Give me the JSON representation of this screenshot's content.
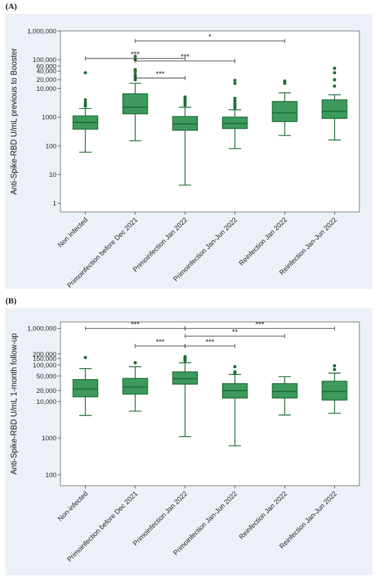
{
  "panel_a_label": "(A)",
  "panel_b_label": "(B)",
  "colors": {
    "box_fill": "#3d9a5c",
    "box_stroke": "#1d6b33",
    "outlier": "#1f6e34",
    "panel_background": "#ebf1f6",
    "plot_background": "#ffffff"
  },
  "chart_data": [
    {
      "type": "box",
      "ylabel": "Anti-Spike-RBD U/mL previous to Booster",
      "yscale": "log",
      "ylim": [
        0.5,
        1000000
      ],
      "yticks": [
        {
          "v": 1,
          "label": "1"
        },
        {
          "v": 10,
          "label": "10"
        },
        {
          "v": 100,
          "label": "100"
        },
        {
          "v": 1000,
          "label": "1000"
        },
        {
          "v": 10000,
          "label": "10,000"
        },
        {
          "v": 20000,
          "label": "20,000"
        },
        {
          "v": 40000,
          "label": "40,000"
        },
        {
          "v": 60000,
          "label": "60,000"
        },
        {
          "v": 100000,
          "label": "100,000"
        },
        {
          "v": 1000000,
          "label": "1,000,000"
        }
      ],
      "categories": [
        "Non Infected",
        "Primoinfection before Dec 2021",
        "Primoinfection Jan 2022",
        "Primoinfection Jan-Jun 2022",
        "Reinfection Jan 2022",
        "Reinfection Jan-Jun 2022"
      ],
      "boxes": [
        {
          "min": 60,
          "q1": 380,
          "median": 650,
          "q3": 1100,
          "max": 2000,
          "outliers": [
            2400,
            2700,
            3200,
            4000,
            35000
          ]
        },
        {
          "min": 150,
          "q1": 1300,
          "median": 2200,
          "q3": 6500,
          "max": 15000,
          "outliers": [
            20000,
            25000,
            30000,
            38000,
            45000,
            100000,
            130000
          ]
        },
        {
          "min": 4.3,
          "q1": 350,
          "median": 580,
          "q3": 1050,
          "max": 2200,
          "outliers": [
            2600,
            3000,
            3500,
            4200,
            5000
          ]
        },
        {
          "min": 80,
          "q1": 400,
          "median": 600,
          "q3": 1000,
          "max": 1800,
          "outliers": [
            2100,
            2500,
            3000,
            3700,
            4500,
            15000,
            19000
          ]
        },
        {
          "min": 230,
          "q1": 700,
          "median": 1400,
          "q3": 3500,
          "max": 7000,
          "outliers": [
            15000,
            18000
          ]
        },
        {
          "min": 160,
          "q1": 900,
          "median": 1600,
          "q3": 4000,
          "max": 6000,
          "outliers": [
            12000,
            20000,
            35000,
            50000
          ]
        }
      ],
      "significance": [
        {
          "from": 0,
          "to": 2,
          "y": 110000,
          "label": "***"
        },
        {
          "from": 1,
          "to": 2,
          "y": 23000,
          "label": "***"
        },
        {
          "from": 1,
          "to": 3,
          "y": 90000,
          "label": "***"
        },
        {
          "from": 1,
          "to": 4,
          "y": 450000,
          "label": "*"
        }
      ]
    },
    {
      "type": "box",
      "ylabel": "Anti-Spike-RBD U/mL 1-month follow-up",
      "yscale": "log",
      "ylim": [
        50,
        1500000
      ],
      "yticks": [
        {
          "v": 100,
          "label": "100"
        },
        {
          "v": 1000,
          "label": "1000"
        },
        {
          "v": 10000,
          "label": "10,000"
        },
        {
          "v": 20000,
          "label": "20,000"
        },
        {
          "v": 50000,
          "label": "50,000"
        },
        {
          "v": 100000,
          "label": "100,000"
        },
        {
          "v": 150000,
          "label": "150,000"
        },
        {
          "v": 200000,
          "label": "200,000"
        },
        {
          "v": 1000000,
          "label": "1,000,000"
        }
      ],
      "categories": [
        "Non-infected",
        "Primoinfection before Dec 2021",
        "Primoinfection Jan 2022",
        "Primoinfection Jan-Jun 2022",
        "Reinfection Jan 2022",
        "Reinfection Jan-Jun 2022"
      ],
      "boxes": [
        {
          "min": 4200,
          "q1": 13500,
          "median": 22000,
          "q3": 40000,
          "max": 80000,
          "outliers": [
            160000
          ]
        },
        {
          "min": 5500,
          "q1": 16000,
          "median": 25000,
          "q3": 43000,
          "max": 90000,
          "outliers": [
            115000
          ]
        },
        {
          "min": 1100,
          "q1": 30000,
          "median": 42000,
          "q3": 65000,
          "max": 115000,
          "outliers": [
            130000,
            140000,
            150000,
            160000,
            170000
          ]
        },
        {
          "min": 620,
          "q1": 12500,
          "median": 20000,
          "q3": 31000,
          "max": 55000,
          "outliers": [
            60000,
            65000,
            90000
          ]
        },
        {
          "min": 4300,
          "q1": 12500,
          "median": 19000,
          "q3": 31000,
          "max": 48000,
          "outliers": []
        },
        {
          "min": 4800,
          "q1": 11000,
          "median": 19000,
          "q3": 36000,
          "max": 60000,
          "outliers": [
            75000,
            95000
          ]
        }
      ],
      "significance": [
        {
          "from": 0,
          "to": 2,
          "y": 1000000,
          "label": "***"
        },
        {
          "from": 1,
          "to": 2,
          "y": 330000,
          "label": "***"
        },
        {
          "from": 2,
          "to": 3,
          "y": 330000,
          "label": "***"
        },
        {
          "from": 2,
          "to": 4,
          "y": 620000,
          "label": "**"
        },
        {
          "from": 2,
          "to": 5,
          "y": 1000000,
          "label": "***"
        }
      ]
    }
  ]
}
